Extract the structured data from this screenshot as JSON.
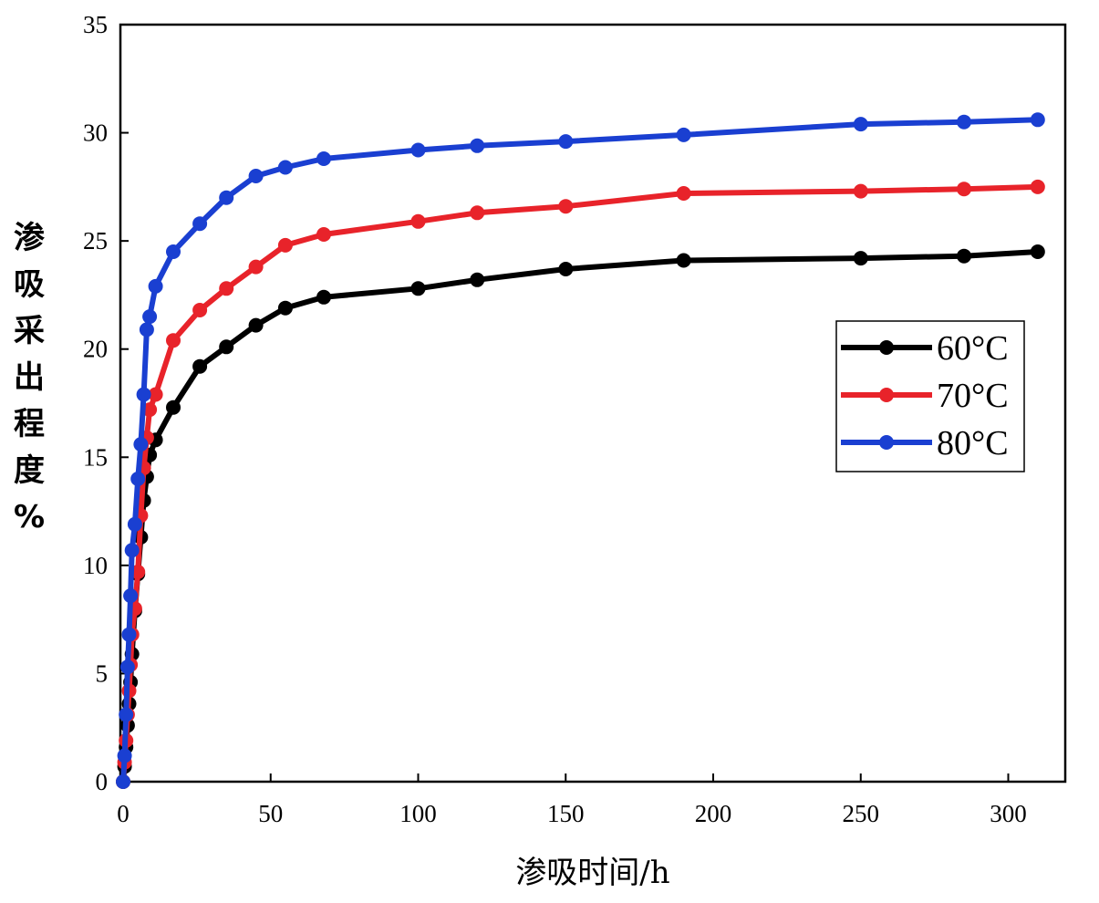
{
  "chart_data": {
    "type": "line",
    "title": "",
    "xlabel": "渗吸时间/h",
    "ylabel_chars": [
      "渗",
      "吸",
      "采",
      "出",
      "程",
      "度",
      "%"
    ],
    "xlim": [
      0,
      320
    ],
    "ylim": [
      0,
      35
    ],
    "xticks": [
      0,
      50,
      100,
      150,
      200,
      250,
      300
    ],
    "yticks": [
      0,
      5,
      10,
      15,
      20,
      25,
      30,
      35
    ],
    "grid": false,
    "legend_position": "center-right",
    "series": [
      {
        "name": "60°C",
        "color": "#000000",
        "x": [
          0,
          0.5,
          1,
          1.5,
          2,
          2.5,
          3,
          4,
          5,
          6,
          7,
          8,
          9,
          11,
          17,
          26,
          35,
          45,
          55,
          68,
          100,
          120,
          150,
          190,
          250,
          285,
          310
        ],
        "y": [
          0,
          0.7,
          1.6,
          2.6,
          3.6,
          4.6,
          5.9,
          7.9,
          9.6,
          11.3,
          13.0,
          14.1,
          15.1,
          15.8,
          17.3,
          19.2,
          20.1,
          21.1,
          21.9,
          22.4,
          22.8,
          23.2,
          23.7,
          24.1,
          24.2,
          24.3,
          24.5
        ]
      },
      {
        "name": "70°C",
        "color": "#e8232a",
        "x": [
          0,
          0.5,
          1,
          1.5,
          2,
          2.5,
          3,
          4,
          5,
          6,
          7,
          8,
          9,
          11,
          17,
          26,
          35,
          45,
          55,
          68,
          100,
          120,
          150,
          190,
          250,
          285,
          310
        ],
        "y": [
          0,
          0.9,
          1.9,
          3.1,
          4.2,
          5.4,
          6.8,
          8.0,
          9.7,
          12.3,
          14.5,
          15.9,
          17.2,
          17.9,
          20.4,
          21.8,
          22.8,
          23.8,
          24.8,
          25.3,
          25.9,
          26.3,
          26.6,
          27.2,
          27.3,
          27.4,
          27.5
        ]
      },
      {
        "name": "80°C",
        "color": "#1a3fd1",
        "x": [
          0,
          0.5,
          1,
          1.5,
          2,
          2.5,
          3,
          4,
          5,
          6,
          7,
          8,
          9,
          11,
          17,
          26,
          35,
          45,
          55,
          68,
          100,
          120,
          150,
          190,
          250,
          285,
          310
        ],
        "y": [
          0,
          1.2,
          3.1,
          5.3,
          6.8,
          8.6,
          10.7,
          11.9,
          14.0,
          15.6,
          17.9,
          20.9,
          21.5,
          22.9,
          24.5,
          25.8,
          27.0,
          28.0,
          28.4,
          28.8,
          29.2,
          29.4,
          29.6,
          29.9,
          30.4,
          30.5,
          30.6
        ]
      }
    ]
  }
}
